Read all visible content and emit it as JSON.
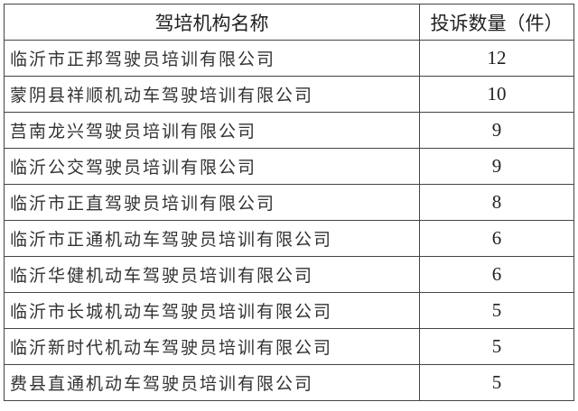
{
  "table": {
    "headers": [
      "驾培机构名称",
      "投诉数量（件）"
    ],
    "rows": [
      {
        "name": "临沂市正邦驾驶员培训有限公司",
        "count": "12"
      },
      {
        "name": "蒙阴县祥顺机动车驾驶培训有限公司",
        "count": "10"
      },
      {
        "name": "莒南龙兴驾驶员培训有限公司",
        "count": "9"
      },
      {
        "name": "临沂公交驾驶员培训有限公司",
        "count": "9"
      },
      {
        "name": "临沂市正直驾驶员培训有限公司",
        "count": "8"
      },
      {
        "name": "临沂市正通机动车驾驶员培训有限公司",
        "count": "6"
      },
      {
        "name": "临沂华健机动车驾驶员培训有限公司",
        "count": "6"
      },
      {
        "name": "临沂市长城机动车驾驶员培训有限公司",
        "count": "5"
      },
      {
        "name": "临沂新时代机动车驾驶员培训有限公司",
        "count": "5"
      },
      {
        "name": "费县直通机动车驾驶员培训有限公司",
        "count": "5"
      }
    ]
  }
}
